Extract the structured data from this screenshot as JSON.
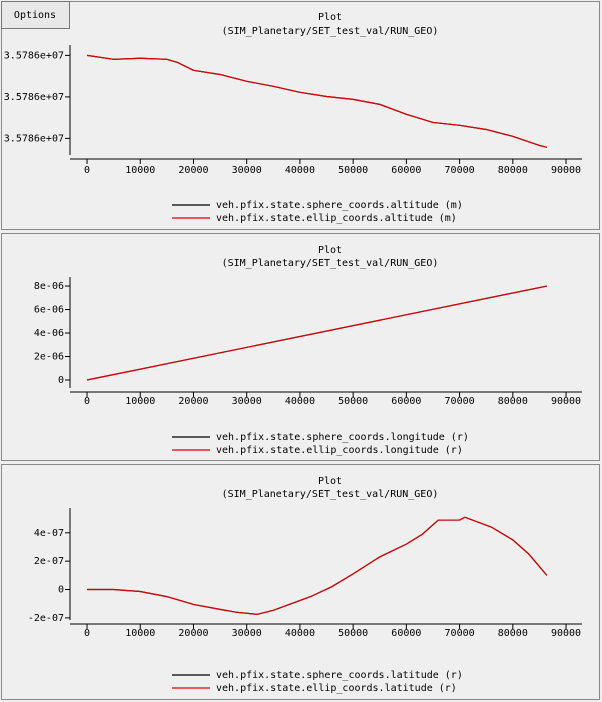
{
  "ui": {
    "button": "Options"
  },
  "chart_data": [
    {
      "type": "line",
      "title": "Plot",
      "subtitle": "(SIM_Planetary/SET_test_val/RUN_GEO)",
      "x": [
        0,
        5000,
        10000,
        15000,
        17000,
        20000,
        25000,
        30000,
        35000,
        40000,
        45000,
        50000,
        55000,
        60000,
        65000,
        70000,
        75000,
        80000,
        85000,
        86400
      ],
      "series": [
        {
          "name": "veh.pfix.state.sphere_coords.altitude (m)",
          "color": "#000000",
          "values": [
            35786040,
            35786038.1,
            35786038.6,
            35786038.1,
            35786036.6,
            35786032.8,
            35786030.8,
            35786027.5,
            35786025.1,
            35786022.2,
            35786020.2,
            35786018.8,
            35786016.4,
            35786011.6,
            35786007.7,
            35786006.3,
            35786004.3,
            35786001.0,
            35785996.6,
            35785995.7
          ]
        },
        {
          "name": "veh.pfix.state.ellip_coords.altitude (m)",
          "color": "#dd0000",
          "values": [
            35786040,
            35786038.1,
            35786038.6,
            35786038.1,
            35786036.6,
            35786032.8,
            35786030.8,
            35786027.5,
            35786025.1,
            35786022.2,
            35786020.2,
            35786018.8,
            35786016.4,
            35786011.6,
            35786007.7,
            35786006.3,
            35786004.3,
            35786001.0,
            35785996.6,
            35785995.7
          ]
        }
      ],
      "xlim": [
        -3200,
        93000
      ],
      "xticks": [
        0,
        10000,
        20000,
        30000,
        40000,
        50000,
        60000,
        70000,
        80000,
        90000
      ],
      "ylim": [
        35785992,
        35786045
      ],
      "yticks": [
        {
          "value": 35786040,
          "label": "3.5786e+07"
        },
        {
          "value": 35786020,
          "label": "3.5786e+07"
        },
        {
          "value": 35786000,
          "label": "3.5786e+07"
        }
      ],
      "legend": "bottom"
    },
    {
      "type": "line",
      "title": "Plot",
      "subtitle": "(SIM_Planetary/SET_test_val/RUN_GEO)",
      "x": [
        0,
        86400
      ],
      "series": [
        {
          "name": "veh.pfix.state.sphere_coords.longitude (r)",
          "color": "#000000",
          "values": [
            0,
            8e-06
          ]
        },
        {
          "name": "veh.pfix.state.ellip_coords.longitude (r)",
          "color": "#dd0000",
          "values": [
            0,
            8e-06
          ]
        }
      ],
      "xlim": [
        -3200,
        93000
      ],
      "xticks": [
        0,
        10000,
        20000,
        30000,
        40000,
        50000,
        60000,
        70000,
        80000,
        90000
      ],
      "ylim": [
        -6.8e-07,
        8.77e-06
      ],
      "yticks": [
        {
          "value": 8e-06,
          "label": "8e-06"
        },
        {
          "value": 6e-06,
          "label": "6e-06"
        },
        {
          "value": 4e-06,
          "label": "4e-06"
        },
        {
          "value": 2e-06,
          "label": "2e-06"
        },
        0
      ],
      "legend": "bottom"
    },
    {
      "type": "line",
      "title": "Plot",
      "subtitle": "(SIM_Planetary/SET_test_val/RUN_GEO)",
      "x": [
        0,
        5000,
        10000,
        15000,
        20000,
        25000,
        28000,
        32000,
        35000,
        38000,
        42000,
        46000,
        50000,
        55000,
        60000,
        63000,
        66000,
        70000,
        71000,
        76000,
        80000,
        83000,
        86400
      ],
      "series": [
        {
          "name": "veh.pfix.state.sphere_coords.latitude (r)",
          "color": "#000000",
          "values": [
            0,
            0,
            -1.4e-08,
            -5e-08,
            -1.05e-07,
            -1.4e-07,
            -1.6e-07,
            -1.75e-07,
            -1.47e-07,
            -1.05e-07,
            -5e-08,
            2e-08,
            1.1e-07,
            2.3e-07,
            3.2e-07,
            3.9e-07,
            4.9e-07,
            4.9e-07,
            5.1e-07,
            4.4e-07,
            3.5e-07,
            2.5e-07,
            1e-07
          ]
        },
        {
          "name": "veh.pfix.state.ellip_coords.latitude (r)",
          "color": "#dd0000",
          "values": [
            0,
            0,
            -1.4e-08,
            -5e-08,
            -1.05e-07,
            -1.4e-07,
            -1.6e-07,
            -1.75e-07,
            -1.47e-07,
            -1.05e-07,
            -5e-08,
            2e-08,
            1.1e-07,
            2.3e-07,
            3.2e-07,
            3.9e-07,
            4.9e-07,
            4.9e-07,
            5.1e-07,
            4.4e-07,
            3.5e-07,
            2.5e-07,
            1e-07
          ]
        }
      ],
      "xlim": [
        -3200,
        93000
      ],
      "xticks": [
        0,
        10000,
        20000,
        30000,
        40000,
        50000,
        60000,
        70000,
        80000,
        90000
      ],
      "ylim": [
        -2.15e-07,
        5.75e-07
      ],
      "yticks": [
        {
          "value": 4e-07,
          "label": "4e-07"
        },
        {
          "value": 2e-07,
          "label": "2e-07"
        },
        0,
        {
          "value": -2e-07,
          "label": "-2e-07"
        }
      ],
      "legend": "bottom"
    }
  ]
}
